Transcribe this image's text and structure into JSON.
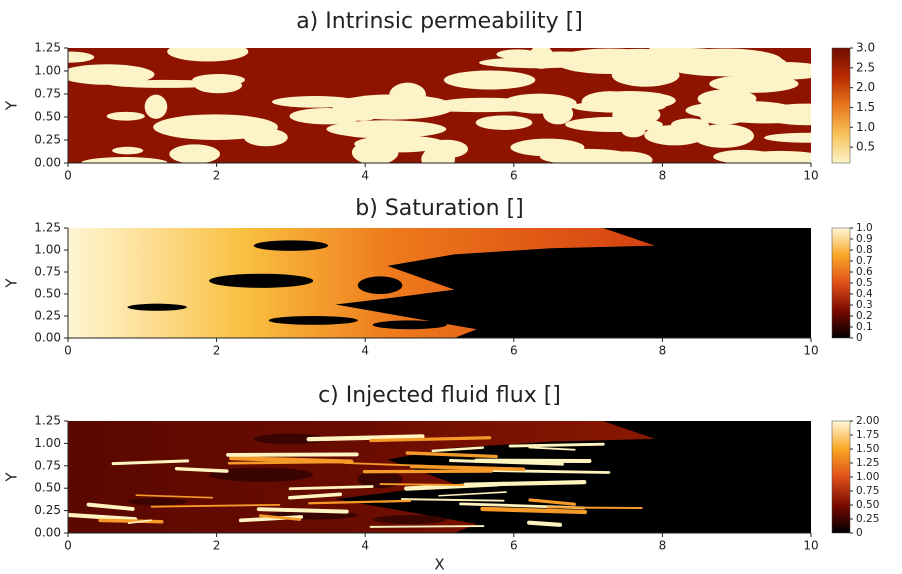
{
  "chart_data": [
    {
      "type": "heatmap",
      "title": "a) Intrinsic permeability []",
      "y_label": "Y",
      "xlim": [
        0,
        10
      ],
      "xticks": [
        0,
        2,
        4,
        6,
        8,
        10
      ],
      "ylim": [
        0,
        1.25
      ],
      "yticks": [
        {
          "value": 0,
          "label": "0.00"
        },
        0.25,
        {
          "value": 0.5,
          "label": "0.50"
        },
        0.75,
        {
          "value": 1,
          "label": "1.00"
        },
        1.25
      ],
      "colorbar": {
        "lim": [
          0.1,
          3.0
        ],
        "ticks": [
          0.5,
          {
            "value": 1,
            "label": "1.0"
          },
          1.5,
          {
            "value": 2,
            "label": "2.0"
          },
          2.5,
          {
            "value": 3,
            "label": "3.0"
          }
        ],
        "colors": [
          "#fdf3c8",
          "#f7c35a",
          "#e8761e",
          "#b82a02",
          "#6e0c00"
        ]
      }
    },
    {
      "type": "heatmap",
      "title": "b) Saturation []",
      "y_label": "Y",
      "xlim": [
        0,
        10
      ],
      "xticks": [
        0,
        2,
        4,
        6,
        8,
        10
      ],
      "ylim": [
        0,
        1.25
      ],
      "yticks": [
        {
          "value": 0,
          "label": "0.00"
        },
        0.25,
        {
          "value": 0.5,
          "label": "0.50"
        },
        0.75,
        {
          "value": 1,
          "label": "1.00"
        },
        1.25
      ],
      "colorbar": {
        "lim": [
          0,
          1
        ],
        "ticks": [
          0,
          0.1,
          0.2,
          0.3,
          0.4,
          0.5,
          0.6,
          0.7,
          0.8,
          0.9,
          {
            "value": 1,
            "label": "1.0"
          }
        ],
        "colors": [
          "#000000",
          "#7a0a00",
          "#e0501a",
          "#f9a625",
          "#fff8d8"
        ]
      }
    },
    {
      "type": "heatmap",
      "title": "c) Injected fluid flux []",
      "x_label": "X",
      "y_label": "Y",
      "xlim": [
        0,
        10
      ],
      "xticks": [
        0,
        2,
        4,
        6,
        8,
        10
      ],
      "ylim": [
        0,
        1.25
      ],
      "yticks": [
        {
          "value": 0,
          "label": "0.00"
        },
        0.25,
        {
          "value": 0.5,
          "label": "0.50"
        },
        0.75,
        {
          "value": 1,
          "label": "1.00"
        },
        1.25
      ],
      "colorbar": {
        "lim": [
          0,
          2
        ],
        "ticks": [
          0,
          0.25,
          {
            "value": 0.5,
            "label": "0.50"
          },
          0.75,
          {
            "value": 1,
            "label": "1.00"
          },
          1.25,
          {
            "value": 1.5,
            "label": "1.50"
          },
          1.75,
          {
            "value": 2,
            "label": "2.00"
          }
        ],
        "colors": [
          "#000000",
          "#7a0a00",
          "#e0501a",
          "#f9a625",
          "#fff8d8"
        ]
      }
    }
  ]
}
